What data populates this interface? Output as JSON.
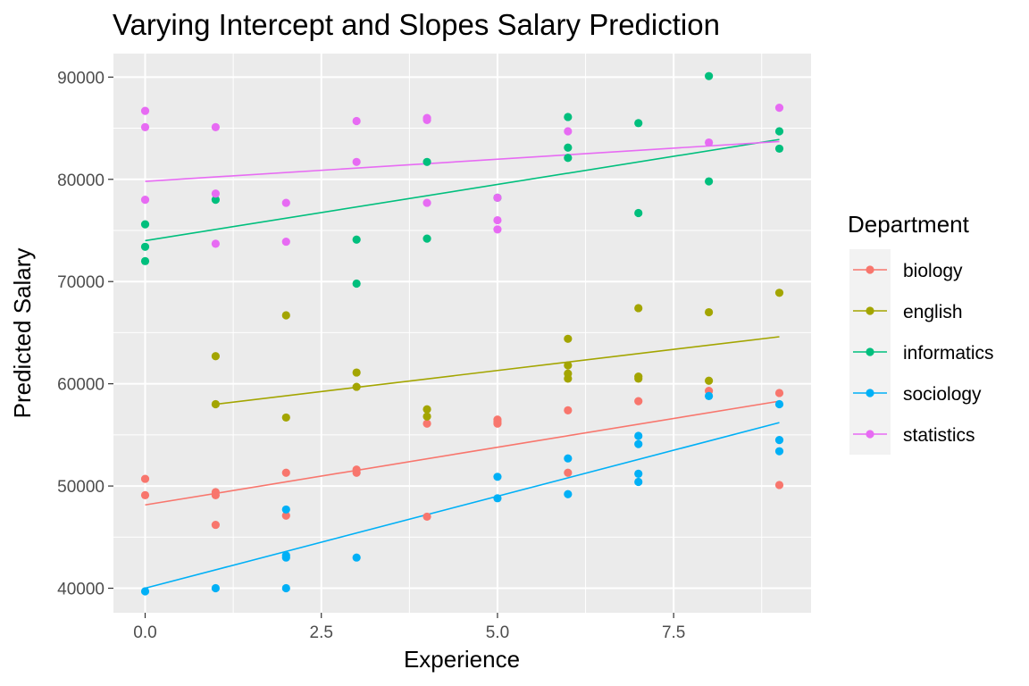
{
  "chart_data": {
    "type": "scatter",
    "title": "Varying Intercept and Slopes Salary Prediction",
    "xlabel": "Experience",
    "ylabel": "Predicted Salary",
    "xlim": [
      -0.45,
      9.45
    ],
    "ylim": [
      37600,
      92300
    ],
    "x_ticks": [
      0,
      2.5,
      5,
      7.5
    ],
    "x_tick_labels": [
      "0.0",
      "2.5",
      "5.0",
      "7.5"
    ],
    "y_ticks": [
      40000,
      50000,
      60000,
      70000,
      80000,
      90000
    ],
    "y_tick_labels": [
      "40000",
      "50000",
      "60000",
      "70000",
      "80000",
      "90000"
    ],
    "grid": true,
    "legend": {
      "title": "Department",
      "placement": "right"
    },
    "series": [
      {
        "name": "biology",
        "color": "#F8766D",
        "points": [
          [
            0,
            50700
          ],
          [
            0,
            49100
          ],
          [
            1,
            49400
          ],
          [
            1,
            49100
          ],
          [
            1,
            46200
          ],
          [
            2,
            51300
          ],
          [
            2,
            47100
          ],
          [
            3,
            51600
          ],
          [
            3,
            51300
          ],
          [
            4,
            56100
          ],
          [
            4,
            47000
          ],
          [
            5,
            56500
          ],
          [
            5,
            56300
          ],
          [
            5,
            56100
          ],
          [
            6,
            57400
          ],
          [
            6,
            51300
          ],
          [
            7,
            58300
          ],
          [
            8,
            59300
          ],
          [
            9,
            59100
          ],
          [
            9,
            50100
          ]
        ],
        "fit": [
          [
            0,
            48150
          ],
          [
            9,
            58300
          ]
        ]
      },
      {
        "name": "english",
        "color": "#A3A500",
        "points": [
          [
            1,
            62700
          ],
          [
            1,
            58000
          ],
          [
            2,
            66700
          ],
          [
            2,
            56700
          ],
          [
            3,
            61100
          ],
          [
            3,
            59700
          ],
          [
            4,
            57500
          ],
          [
            4,
            56800
          ],
          [
            6,
            64400
          ],
          [
            6,
            61800
          ],
          [
            6,
            61000
          ],
          [
            6,
            60500
          ],
          [
            7,
            67400
          ],
          [
            7,
            60700
          ],
          [
            7,
            60500
          ],
          [
            8,
            67000
          ],
          [
            8,
            60300
          ],
          [
            9,
            68900
          ]
        ],
        "fit": [
          [
            1,
            58000
          ],
          [
            9,
            64600
          ]
        ]
      },
      {
        "name": "informatics",
        "color": "#00BF7D",
        "points": [
          [
            0,
            75600
          ],
          [
            0,
            73400
          ],
          [
            0,
            72000
          ],
          [
            1,
            78000
          ],
          [
            3,
            74100
          ],
          [
            3,
            69800
          ],
          [
            4,
            81700
          ],
          [
            4,
            74200
          ],
          [
            5,
            78200
          ],
          [
            6,
            86100
          ],
          [
            6,
            83100
          ],
          [
            6,
            82100
          ],
          [
            7,
            85500
          ],
          [
            7,
            76700
          ],
          [
            8,
            90100
          ],
          [
            8,
            79800
          ],
          [
            9,
            84700
          ],
          [
            9,
            83000
          ]
        ],
        "fit": [
          [
            0,
            74000
          ],
          [
            9,
            83900
          ]
        ]
      },
      {
        "name": "sociology",
        "color": "#00B0F6",
        "points": [
          [
            0,
            39700
          ],
          [
            1,
            40000
          ],
          [
            2,
            47700
          ],
          [
            2,
            43200
          ],
          [
            2,
            43000
          ],
          [
            2,
            40000
          ],
          [
            3,
            43000
          ],
          [
            5,
            50900
          ],
          [
            5,
            48800
          ],
          [
            6,
            52700
          ],
          [
            6,
            49200
          ],
          [
            7,
            54900
          ],
          [
            7,
            54100
          ],
          [
            7,
            51200
          ],
          [
            7,
            50400
          ],
          [
            8,
            58800
          ],
          [
            9,
            58000
          ],
          [
            9,
            54500
          ],
          [
            9,
            53400
          ]
        ],
        "fit": [
          [
            0,
            40000
          ],
          [
            9,
            56200
          ]
        ]
      },
      {
        "name": "statistics",
        "color": "#E76BF3",
        "points": [
          [
            0,
            86700
          ],
          [
            0,
            85100
          ],
          [
            0,
            78000
          ],
          [
            1,
            85100
          ],
          [
            1,
            78600
          ],
          [
            1,
            73700
          ],
          [
            2,
            77700
          ],
          [
            2,
            73900
          ],
          [
            3,
            85700
          ],
          [
            3,
            81700
          ],
          [
            4,
            86000
          ],
          [
            4,
            85800
          ],
          [
            4,
            77700
          ],
          [
            5,
            78200
          ],
          [
            5,
            76000
          ],
          [
            5,
            75100
          ],
          [
            6,
            84700
          ],
          [
            8,
            83600
          ],
          [
            9,
            87000
          ]
        ],
        "fit": [
          [
            0,
            79800
          ],
          [
            9,
            83700
          ]
        ]
      }
    ]
  }
}
